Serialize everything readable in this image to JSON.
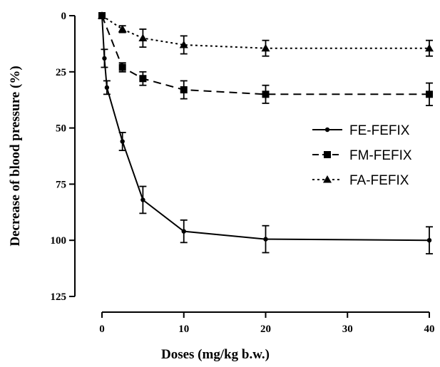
{
  "chart_data": {
    "type": "line",
    "xlabel": "Doses (mg/kg b.w.)",
    "ylabel": "Decrease of blood pressure (%)",
    "xlim": [
      0,
      40
    ],
    "ylim": [
      0,
      125
    ],
    "y_axis_inverted": true,
    "grid": false,
    "legend_position": "right-middle",
    "x_ticks": [
      0,
      10,
      20,
      30,
      40
    ],
    "y_ticks": [
      0,
      25,
      50,
      75,
      100,
      125
    ],
    "series": [
      {
        "name": "FE-FEFIX",
        "marker": "circle",
        "line_style": "solid",
        "x": [
          0,
          0.3,
          0.6,
          2.5,
          5,
          10,
          20,
          40
        ],
        "y": [
          0,
          19,
          32,
          56,
          82,
          96,
          99.5,
          100
        ],
        "error": [
          0,
          4,
          3,
          4,
          6,
          5,
          6,
          6
        ]
      },
      {
        "name": "FM-FEFIX",
        "marker": "square",
        "line_style": "dashed",
        "x": [
          0,
          2.5,
          5,
          10,
          20,
          40
        ],
        "y": [
          0,
          23,
          28,
          33,
          35,
          35
        ],
        "error": [
          0,
          2,
          3,
          4,
          4,
          5
        ]
      },
      {
        "name": "FA-FEFIX",
        "marker": "triangle",
        "line_style": "dotted",
        "x": [
          0,
          2.5,
          5,
          10,
          20,
          40
        ],
        "y": [
          0,
          6,
          10,
          13,
          14.5,
          14.5
        ],
        "error": [
          0,
          1.5,
          4,
          4,
          3.5,
          3.5
        ]
      }
    ]
  }
}
